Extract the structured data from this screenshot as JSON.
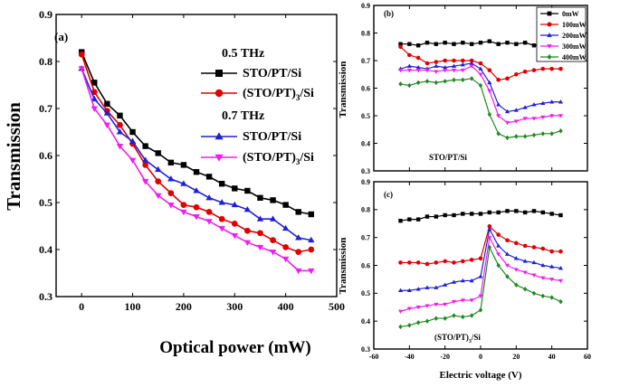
{
  "chart_data": [
    {
      "type": "line",
      "panel_label": "(a)",
      "xlabel": "Optical power (mW)",
      "ylabel": "Transmission",
      "xlim": [
        -50,
        500
      ],
      "ylim": [
        0.3,
        0.9
      ],
      "xticks": [
        "0",
        "100",
        "200",
        "300",
        "400",
        "500"
      ],
      "yticks": [
        "0.3",
        "0.4",
        "0.5",
        "0.6",
        "0.7",
        "0.8",
        "0.9"
      ],
      "legend_groups": [
        {
          "header": "0.5 THz",
          "entries": [
            "STO/PT/Si",
            "(STO/PT)3/Si"
          ]
        },
        {
          "header": "0.7 THz",
          "entries": [
            "STO/PT/Si",
            "(STO/PT)3/Si"
          ]
        }
      ],
      "x": [
        0,
        25,
        50,
        75,
        100,
        125,
        150,
        175,
        200,
        225,
        250,
        275,
        300,
        325,
        350,
        375,
        400,
        425,
        450
      ],
      "series": [
        {
          "name": "STO/PT/Si",
          "group": "0.5 THz",
          "color": "#000000",
          "marker": "square",
          "values": [
            0.82,
            0.755,
            0.71,
            0.685,
            0.65,
            0.62,
            0.605,
            0.585,
            0.58,
            0.565,
            0.555,
            0.54,
            0.53,
            0.525,
            0.51,
            0.505,
            0.495,
            0.48,
            0.475
          ]
        },
        {
          "name": "(STO/PT)3/Si",
          "group": "0.5 THz",
          "color": "#e00000",
          "marker": "circle",
          "values": [
            0.815,
            0.735,
            0.695,
            0.665,
            0.625,
            0.58,
            0.545,
            0.52,
            0.495,
            0.49,
            0.48,
            0.465,
            0.455,
            0.44,
            0.435,
            0.42,
            0.405,
            0.395,
            0.4
          ]
        },
        {
          "name": "STO/PT/Si",
          "group": "0.7 THz",
          "color": "#1f1fd8",
          "marker": "triangle-up",
          "values": [
            0.785,
            0.72,
            0.69,
            0.65,
            0.63,
            0.59,
            0.57,
            0.55,
            0.54,
            0.525,
            0.51,
            0.5,
            0.495,
            0.485,
            0.465,
            0.465,
            0.445,
            0.425,
            0.42
          ]
        },
        {
          "name": "(STO/PT)3/Si",
          "group": "0.7 THz",
          "color": "#ee1fee",
          "marker": "triangle-down",
          "values": [
            0.785,
            0.7,
            0.665,
            0.62,
            0.59,
            0.545,
            0.515,
            0.495,
            0.48,
            0.47,
            0.46,
            0.445,
            0.43,
            0.415,
            0.405,
            0.395,
            0.38,
            0.355,
            0.355
          ]
        }
      ]
    },
    {
      "type": "line",
      "panel_label": "(b)",
      "annotation": "STO/PT/Si",
      "ylabel": "Transmission",
      "ylim": [
        0.3,
        0.9
      ],
      "xlim": [
        -60,
        60
      ],
      "yticks": [
        "0.3",
        "0.4",
        "0.5",
        "0.6",
        "0.7",
        "0.8",
        "0.9"
      ],
      "legend": [
        "0mW",
        "100mW",
        "200mW",
        "300mW",
        "400mW"
      ],
      "x": [
        -45,
        -40,
        -35,
        -30,
        -25,
        -20,
        -15,
        -10,
        -5,
        0,
        5,
        10,
        15,
        20,
        25,
        30,
        35,
        40,
        45
      ],
      "series": [
        {
          "name": "0mW",
          "color": "#000000",
          "marker": "square",
          "values": [
            0.76,
            0.76,
            0.755,
            0.765,
            0.76,
            0.765,
            0.76,
            0.765,
            0.76,
            0.765,
            0.77,
            0.76,
            0.765,
            0.76,
            0.765,
            0.755,
            0.76,
            0.755,
            0.765
          ]
        },
        {
          "name": "100mW",
          "color": "#e00000",
          "marker": "circle",
          "values": [
            0.75,
            0.72,
            0.71,
            0.69,
            0.695,
            0.7,
            0.7,
            0.7,
            0.7,
            0.69,
            0.665,
            0.63,
            0.635,
            0.65,
            0.66,
            0.665,
            0.67,
            0.67,
            0.67
          ]
        },
        {
          "name": "200mW",
          "color": "#1f1fd8",
          "marker": "triangle-up",
          "values": [
            0.67,
            0.68,
            0.675,
            0.67,
            0.68,
            0.675,
            0.68,
            0.685,
            0.69,
            0.67,
            0.62,
            0.54,
            0.515,
            0.52,
            0.53,
            0.54,
            0.545,
            0.55,
            0.55
          ]
        },
        {
          "name": "300mW",
          "color": "#ee1fee",
          "marker": "triangle-down",
          "values": [
            0.665,
            0.665,
            0.665,
            0.665,
            0.66,
            0.665,
            0.665,
            0.665,
            0.68,
            0.65,
            0.59,
            0.5,
            0.475,
            0.48,
            0.49,
            0.49,
            0.495,
            0.5,
            0.5
          ]
        },
        {
          "name": "400mW",
          "color": "#1e8a1e",
          "marker": "diamond",
          "values": [
            0.615,
            0.61,
            0.62,
            0.625,
            0.62,
            0.625,
            0.63,
            0.63,
            0.635,
            0.61,
            0.505,
            0.435,
            0.42,
            0.425,
            0.425,
            0.43,
            0.435,
            0.435,
            0.445
          ]
        }
      ]
    },
    {
      "type": "line",
      "panel_label": "(c)",
      "annotation": "(STO/PT)3/Si",
      "xlabel": "Electric voltage (V)",
      "ylabel": "Transmission",
      "xlim": [
        -60,
        60
      ],
      "ylim": [
        0.3,
        0.9
      ],
      "xticks": [
        "-60",
        "-40",
        "-20",
        "0",
        "20",
        "40",
        "60"
      ],
      "yticks": [
        "0.3",
        "0.4",
        "0.5",
        "0.6",
        "0.7",
        "0.8",
        "0.9"
      ],
      "x": [
        -45,
        -40,
        -35,
        -30,
        -25,
        -20,
        -15,
        -10,
        -5,
        0,
        5,
        10,
        15,
        20,
        25,
        30,
        35,
        40,
        45
      ],
      "series": [
        {
          "name": "0mW",
          "color": "#000000",
          "marker": "square",
          "values": [
            0.76,
            0.765,
            0.765,
            0.775,
            0.775,
            0.78,
            0.78,
            0.785,
            0.785,
            0.785,
            0.79,
            0.79,
            0.795,
            0.795,
            0.79,
            0.795,
            0.79,
            0.785,
            0.78
          ]
        },
        {
          "name": "100mW",
          "color": "#e00000",
          "marker": "circle",
          "values": [
            0.61,
            0.61,
            0.61,
            0.605,
            0.61,
            0.615,
            0.61,
            0.615,
            0.62,
            0.625,
            0.74,
            0.71,
            0.69,
            0.68,
            0.67,
            0.665,
            0.66,
            0.65,
            0.65
          ]
        },
        {
          "name": "200mW",
          "color": "#1f1fd8",
          "marker": "triangle-up",
          "values": [
            0.51,
            0.51,
            0.515,
            0.52,
            0.52,
            0.53,
            0.54,
            0.545,
            0.545,
            0.56,
            0.73,
            0.67,
            0.64,
            0.625,
            0.615,
            0.61,
            0.6,
            0.595,
            0.59
          ]
        },
        {
          "name": "300mW",
          "color": "#ee1fee",
          "marker": "triangle-down",
          "values": [
            0.435,
            0.445,
            0.45,
            0.455,
            0.46,
            0.46,
            0.47,
            0.475,
            0.475,
            0.49,
            0.7,
            0.64,
            0.6,
            0.585,
            0.575,
            0.565,
            0.555,
            0.55,
            0.545
          ]
        },
        {
          "name": "400mW",
          "color": "#1e8a1e",
          "marker": "diamond",
          "values": [
            0.38,
            0.385,
            0.395,
            0.4,
            0.41,
            0.41,
            0.42,
            0.415,
            0.42,
            0.44,
            0.665,
            0.6,
            0.56,
            0.53,
            0.515,
            0.5,
            0.49,
            0.485,
            0.47
          ]
        }
      ]
    }
  ]
}
